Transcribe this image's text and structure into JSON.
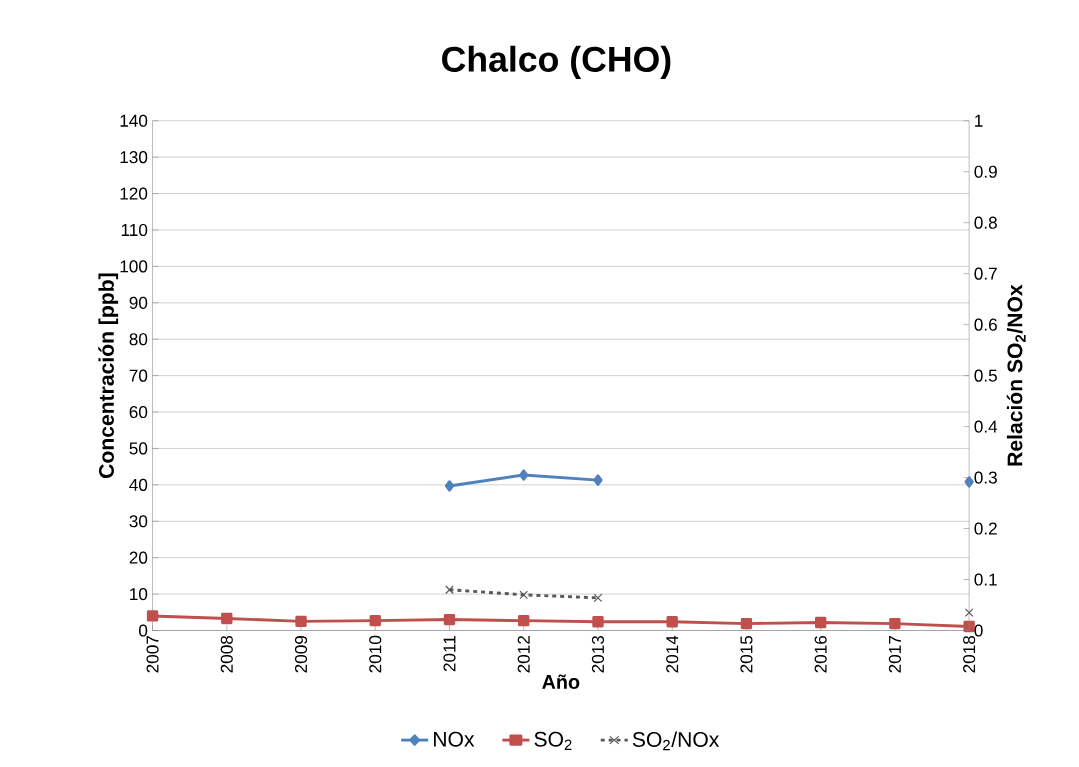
{
  "chart_data": {
    "type": "line",
    "title": "Chalco (CHO)",
    "xlabel": "Año",
    "ylabel": "Concentración [ppb]",
    "y2label": "Relación SO$_{2}$/NOx",
    "categories": [
      "2007",
      "2008",
      "2009",
      "2010",
      "2011",
      "2012",
      "2013",
      "2014",
      "2015",
      "2016",
      "2017",
      "2018"
    ],
    "series": [
      {
        "name": "NOx",
        "color": "#4f81bd",
        "marker": "diamond",
        "line_style": "solid",
        "values": [
          null,
          null,
          null,
          null,
          39.7,
          42.7,
          41.3,
          null,
          null,
          null,
          null,
          40.8
        ]
      },
      {
        "name": "SO$_{2}$",
        "color": "#c0504d",
        "marker": "square",
        "line_style": "solid",
        "values": [
          4.0,
          3.3,
          2.5,
          2.7,
          3.0,
          2.7,
          2.4,
          2.4,
          1.9,
          2.2,
          1.9,
          1.1
        ]
      },
      {
        "name": "SO$_{2}$/NOx",
        "color": "#595959",
        "marker": "cross",
        "line_style": "dashed",
        "axis": "y2",
        "values": [
          null,
          null,
          null,
          null,
          0.08,
          0.07,
          0.064,
          null,
          null,
          null,
          null,
          0.035
        ]
      }
    ],
    "ylim": [
      0,
      140
    ],
    "yticks": [
      0,
      10,
      20,
      30,
      40,
      50,
      60,
      70,
      80,
      90,
      100,
      110,
      120,
      130,
      140
    ],
    "y2lim": [
      0,
      1
    ],
    "y2ticks": [
      0,
      0.1,
      0.2,
      0.3,
      0.4,
      0.5,
      0.6,
      0.7,
      0.8,
      0.9,
      1
    ],
    "grid": "y",
    "legend": "bottom"
  }
}
